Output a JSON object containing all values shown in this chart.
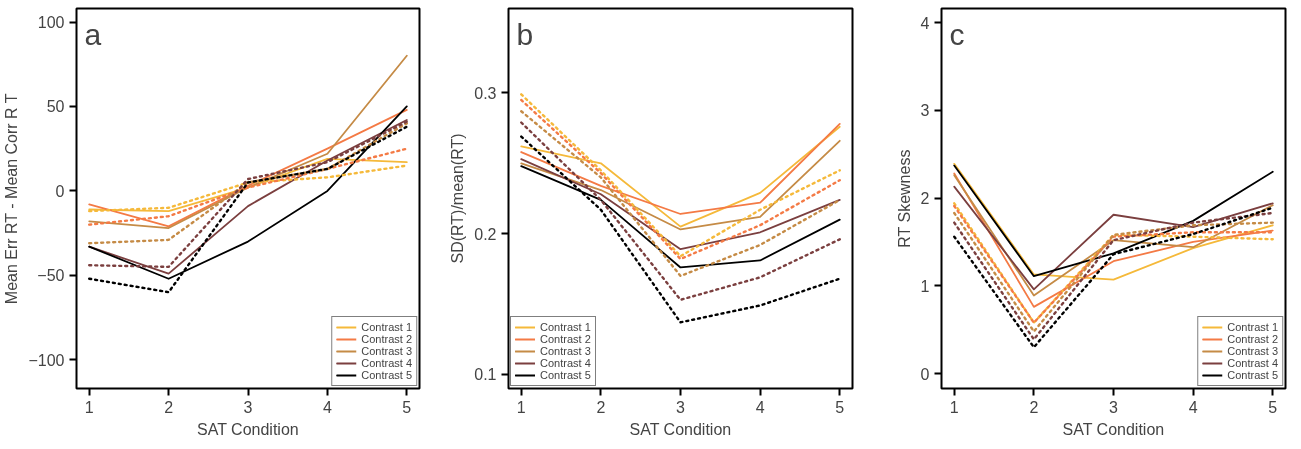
{
  "chart_data": [
    {
      "type": "line",
      "title": "a",
      "xlabel": "SAT Condition",
      "ylabel": "Mean Err RT - Mean Corr R T",
      "x": [
        1,
        2,
        3,
        4,
        5
      ],
      "xlim": [
        0.84,
        5.16
      ],
      "xticks": [
        1,
        2,
        3,
        4,
        5
      ],
      "ylim": [
        -117,
        108
      ],
      "yticks": [
        -100,
        -50,
        0,
        50,
        100
      ],
      "legend": "bottom right",
      "series": [
        {
          "name": "Contrast 1",
          "color": "#f5b93a",
          "line_style": "solid",
          "values": [
            -11,
            -12,
            2,
            19,
            17
          ]
        },
        {
          "name": "Contrast 2",
          "color": "#f47a45",
          "line_style": "solid",
          "values": [
            -8,
            -21,
            3,
            25,
            48
          ]
        },
        {
          "name": "Contrast 3",
          "color": "#c58b46",
          "line_style": "solid",
          "values": [
            -18,
            -22,
            2,
            22,
            80
          ]
        },
        {
          "name": "Contrast 4",
          "color": "#7b3f3f",
          "line_style": "solid",
          "values": [
            -33,
            -49,
            -9,
            18,
            42
          ]
        },
        {
          "name": "Contrast 5",
          "color": "#000000",
          "line_style": "solid",
          "values": [
            -33,
            -52,
            -30,
            0,
            50
          ]
        },
        {
          "color": "#f5b93a",
          "line_style": "dotted",
          "values": [
            -12,
            -10,
            5,
            8,
            15
          ]
        },
        {
          "color": "#f47a45",
          "line_style": "dotted",
          "values": [
            -20,
            -15,
            2,
            13,
            25
          ]
        },
        {
          "color": "#c58b46",
          "line_style": "dotted",
          "values": [
            -31,
            -29,
            5,
            13,
            40
          ]
        },
        {
          "color": "#7b3f3f",
          "line_style": "dotted",
          "values": [
            -44,
            -45,
            7,
            17,
            41
          ]
        },
        {
          "color": "#000000",
          "line_style": "dotted",
          "values": [
            -52,
            -60,
            5,
            13,
            38
          ]
        }
      ]
    },
    {
      "type": "line",
      "title": "b",
      "xlabel": "SAT Condition",
      "ylabel": "SD(RT)/mean(RT)",
      "x": [
        1,
        2,
        3,
        4,
        5
      ],
      "xlim": [
        0.84,
        5.16
      ],
      "xticks": [
        1,
        2,
        3,
        4,
        5
      ],
      "ylim": [
        0.09,
        0.36
      ],
      "yticks": [
        0.1,
        0.2,
        0.3
      ],
      "legend": "bottom left",
      "series": [
        {
          "name": "Contrast 1",
          "color": "#f5b93a",
          "line_style": "solid",
          "values": [
            0.262,
            0.25,
            0.205,
            0.229,
            0.276
          ]
        },
        {
          "name": "Contrast 2",
          "color": "#f47a45",
          "line_style": "solid",
          "values": [
            0.258,
            0.234,
            0.214,
            0.222,
            0.278
          ]
        },
        {
          "name": "Contrast 3",
          "color": "#c58b46",
          "line_style": "solid",
          "values": [
            0.25,
            0.231,
            0.203,
            0.212,
            0.266
          ]
        },
        {
          "name": "Contrast 4",
          "color": "#7b3f3f",
          "line_style": "solid",
          "values": [
            0.253,
            0.228,
            0.189,
            0.201,
            0.224
          ]
        },
        {
          "name": "Contrast 5",
          "color": "#000000",
          "line_style": "solid",
          "values": [
            0.248,
            0.224,
            0.176,
            0.181,
            0.21
          ]
        },
        {
          "color": "#f5b93a",
          "line_style": "dotted",
          "values": [
            0.299,
            0.245,
            0.184,
            0.217,
            0.245
          ]
        },
        {
          "color": "#f47a45",
          "line_style": "dotted",
          "values": [
            0.295,
            0.243,
            0.182,
            0.206,
            0.238
          ]
        },
        {
          "color": "#c58b46",
          "line_style": "dotted",
          "values": [
            0.287,
            0.24,
            0.17,
            0.192,
            0.224
          ]
        },
        {
          "color": "#7b3f3f",
          "line_style": "dotted",
          "values": [
            0.279,
            0.224,
            0.153,
            0.169,
            0.196
          ]
        },
        {
          "color": "#000000",
          "line_style": "dotted",
          "values": [
            0.269,
            0.217,
            0.137,
            0.149,
            0.168
          ]
        }
      ]
    },
    {
      "type": "line",
      "title": "c",
      "xlabel": "SAT Condition",
      "ylabel": "RT Skewness",
      "x": [
        1,
        2,
        3,
        4,
        5
      ],
      "xlim": [
        0.84,
        5.16
      ],
      "xticks": [
        1,
        2,
        3,
        4,
        5
      ],
      "ylim": [
        -0.17,
        4.16
      ],
      "yticks": [
        0,
        1,
        2,
        3,
        4
      ],
      "legend": "bottom right",
      "series": [
        {
          "name": "Contrast 1",
          "color": "#f5b93a",
          "line_style": "solid",
          "values": [
            2.39,
            1.13,
            1.07,
            1.43,
            1.69
          ]
        },
        {
          "name": "Contrast 2",
          "color": "#f47a45",
          "line_style": "solid",
          "values": [
            2.28,
            0.76,
            1.28,
            1.5,
            1.63
          ]
        },
        {
          "name": "Contrast 3",
          "color": "#c58b46",
          "line_style": "solid",
          "values": [
            2.26,
            0.89,
            1.52,
            1.44,
            1.92
          ]
        },
        {
          "name": "Contrast 4",
          "color": "#7b3f3f",
          "line_style": "solid",
          "values": [
            2.13,
            0.96,
            1.81,
            1.67,
            1.94
          ]
        },
        {
          "name": "Contrast 5",
          "color": "#000000",
          "line_style": "solid",
          "values": [
            2.37,
            1.11,
            1.37,
            1.74,
            2.3
          ]
        },
        {
          "color": "#f5b93a",
          "line_style": "dotted",
          "values": [
            1.94,
            0.58,
            1.58,
            1.56,
            1.53
          ]
        },
        {
          "color": "#f47a45",
          "line_style": "dotted",
          "values": [
            1.91,
            0.58,
            1.56,
            1.61,
            1.61
          ]
        },
        {
          "color": "#c58b46",
          "line_style": "dotted",
          "values": [
            1.83,
            0.48,
            1.58,
            1.69,
            1.72
          ]
        },
        {
          "color": "#7b3f3f",
          "line_style": "dotted",
          "values": [
            1.72,
            0.39,
            1.52,
            1.72,
            1.83
          ]
        },
        {
          "color": "#000000",
          "line_style": "dotted",
          "values": [
            1.56,
            0.3,
            1.36,
            1.59,
            1.89
          ]
        }
      ]
    }
  ]
}
